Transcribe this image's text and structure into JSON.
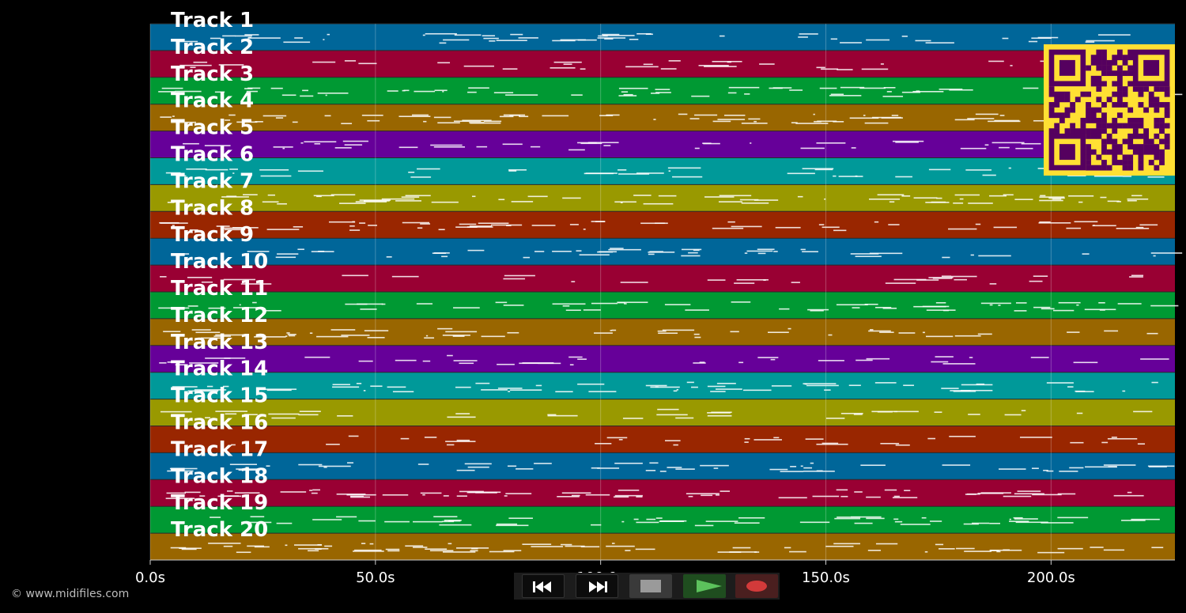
{
  "tracks": [
    {
      "label": "Track 1",
      "color": "#006699"
    },
    {
      "label": "Track 2",
      "color": "#990033"
    },
    {
      "label": "Track 3",
      "color": "#009933"
    },
    {
      "label": "Track 4",
      "color": "#996600"
    },
    {
      "label": "Track 5",
      "color": "#660099"
    },
    {
      "label": "Track 6",
      "color": "#009999"
    },
    {
      "label": "Track 7",
      "color": "#999900"
    },
    {
      "label": "Track 8",
      "color": "#992600"
    },
    {
      "label": "Track 9",
      "color": "#006699"
    },
    {
      "label": "Track 10",
      "color": "#990033"
    },
    {
      "label": "Track 11",
      "color": "#009933"
    },
    {
      "label": "Track 12",
      "color": "#996600"
    },
    {
      "label": "Track 13",
      "color": "#660099"
    },
    {
      "label": "Track 14",
      "color": "#009999"
    },
    {
      "label": "Track 15",
      "color": "#999900"
    },
    {
      "label": "Track 16",
      "color": "#992600"
    },
    {
      "label": "Track 17",
      "color": "#006699"
    },
    {
      "label": "Track 18",
      "color": "#990033"
    },
    {
      "label": "Track 19",
      "color": "#009933"
    },
    {
      "label": "Track 20",
      "color": "#996600"
    }
  ],
  "timeline": {
    "start_seconds": 0,
    "end_seconds": 227.5,
    "ticks": [
      {
        "value": 0,
        "label": "0.0s"
      },
      {
        "value": 50,
        "label": "50.0s"
      },
      {
        "value": 100,
        "label": "100.0s"
      },
      {
        "value": 150,
        "label": "150.0s"
      },
      {
        "value": 200,
        "label": "200.0s"
      }
    ]
  },
  "qr_code": {
    "fg_color": "#55005f",
    "bg_color": "#ffe033"
  },
  "transport": {
    "rewind_icon": "rewind-icon",
    "forward_icon": "fast-forward-icon",
    "stop_icon": "stop-icon",
    "play_icon": "play-icon",
    "record_icon": "record-icon",
    "play_color": "#5cc25c",
    "record_color": "#d23a3a",
    "stop_color": "#9a9a9a"
  },
  "footer": {
    "copyright": "© www.midifiles.com"
  }
}
